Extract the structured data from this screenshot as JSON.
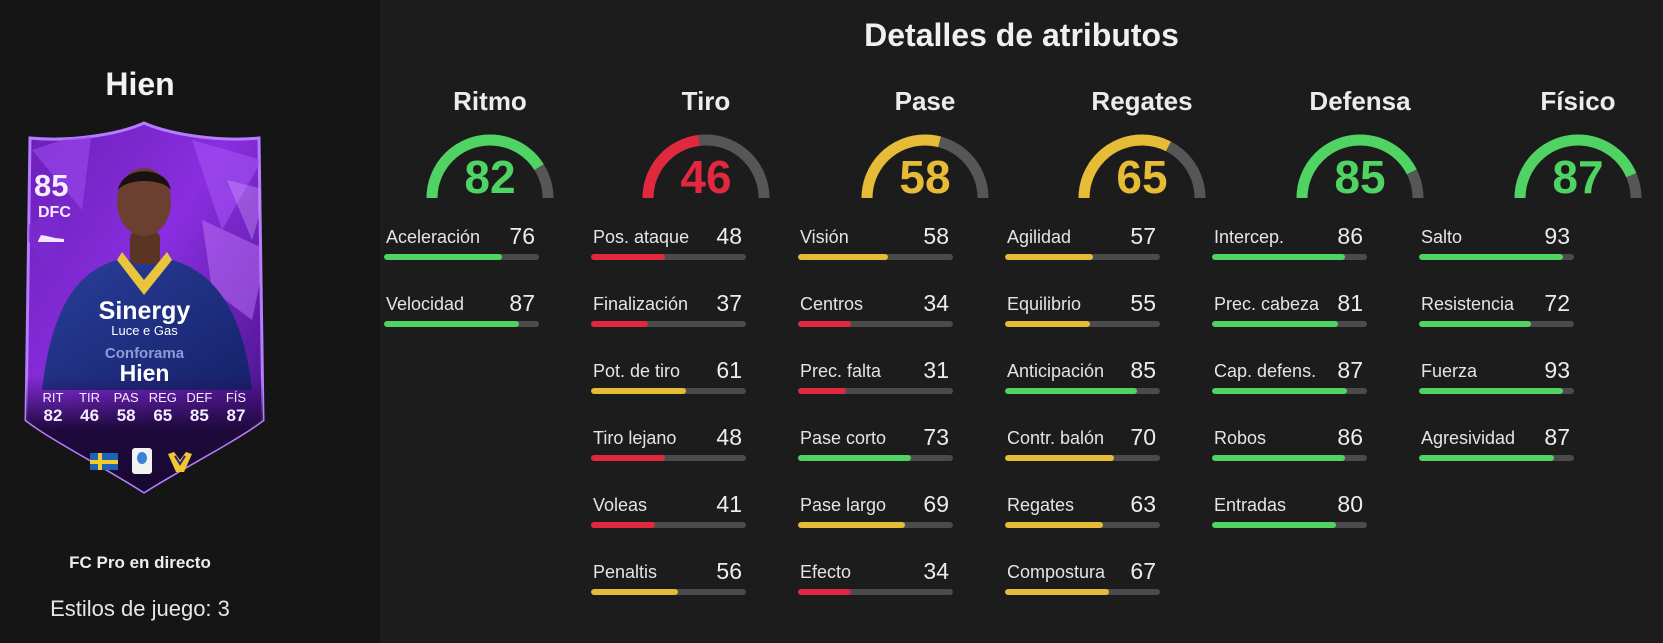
{
  "colors": {
    "green": "#4fd463",
    "yellow": "#e6bb35",
    "red": "#e1283e",
    "track": "#565656"
  },
  "left": {
    "player_name": "Hien",
    "subtitle": "FC Pro en directo",
    "playstyles": "Estilos de juego: 3",
    "card": {
      "rating": "85",
      "position": "DFC",
      "name": "Hien",
      "sponsor_main": "Sinergy",
      "sponsor_sub": "Luce e Gas",
      "sponsor_bottom": "Conforama",
      "stat_labels": [
        "RIT",
        "TIR",
        "PAS",
        "REG",
        "DEF",
        "FÍS"
      ],
      "stat_values": [
        "82",
        "46",
        "58",
        "65",
        "85",
        "87"
      ]
    }
  },
  "title": "Detalles de atributos",
  "categories": [
    {
      "name": "Ritmo",
      "value": 82,
      "color": "green",
      "stats": [
        {
          "label": "Aceleración",
          "value": 76,
          "color": "green"
        },
        {
          "label": "Velocidad",
          "value": 87,
          "color": "green"
        }
      ]
    },
    {
      "name": "Tiro",
      "value": 46,
      "color": "red",
      "stats": [
        {
          "label": "Pos. ataque",
          "value": 48,
          "color": "red"
        },
        {
          "label": "Finalización",
          "value": 37,
          "color": "red"
        },
        {
          "label": "Pot. de tiro",
          "value": 61,
          "color": "yellow"
        },
        {
          "label": "Tiro lejano",
          "value": 48,
          "color": "red"
        },
        {
          "label": "Voleas",
          "value": 41,
          "color": "red"
        },
        {
          "label": "Penaltis",
          "value": 56,
          "color": "yellow"
        }
      ]
    },
    {
      "name": "Pase",
      "value": 58,
      "color": "yellow",
      "stats": [
        {
          "label": "Visión",
          "value": 58,
          "color": "yellow"
        },
        {
          "label": "Centros",
          "value": 34,
          "color": "red"
        },
        {
          "label": "Prec. falta",
          "value": 31,
          "color": "red"
        },
        {
          "label": "Pase corto",
          "value": 73,
          "color": "green"
        },
        {
          "label": "Pase largo",
          "value": 69,
          "color": "yellow"
        },
        {
          "label": "Efecto",
          "value": 34,
          "color": "red"
        }
      ]
    },
    {
      "name": "Regates",
      "value": 65,
      "color": "yellow",
      "stats": [
        {
          "label": "Agilidad",
          "value": 57,
          "color": "yellow"
        },
        {
          "label": "Equilibrio",
          "value": 55,
          "color": "yellow"
        },
        {
          "label": "Anticipación",
          "value": 85,
          "color": "green"
        },
        {
          "label": "Contr. balón",
          "value": 70,
          "color": "yellow"
        },
        {
          "label": "Regates",
          "value": 63,
          "color": "yellow"
        },
        {
          "label": "Compostura",
          "value": 67,
          "color": "yellow"
        }
      ]
    },
    {
      "name": "Defensa",
      "value": 85,
      "color": "green",
      "stats": [
        {
          "label": "Intercep.",
          "value": 86,
          "color": "green"
        },
        {
          "label": "Prec. cabeza",
          "value": 81,
          "color": "green"
        },
        {
          "label": "Cap. defens.",
          "value": 87,
          "color": "green"
        },
        {
          "label": "Robos",
          "value": 86,
          "color": "green"
        },
        {
          "label": "Entradas",
          "value": 80,
          "color": "green"
        }
      ]
    },
    {
      "name": "Físico",
      "value": 87,
      "color": "green",
      "stats": [
        {
          "label": "Salto",
          "value": 93,
          "color": "green"
        },
        {
          "label": "Resistencia",
          "value": 72,
          "color": "green"
        },
        {
          "label": "Fuerza",
          "value": 93,
          "color": "green"
        },
        {
          "label": "Agresividad",
          "value": 87,
          "color": "green"
        }
      ]
    }
  ]
}
